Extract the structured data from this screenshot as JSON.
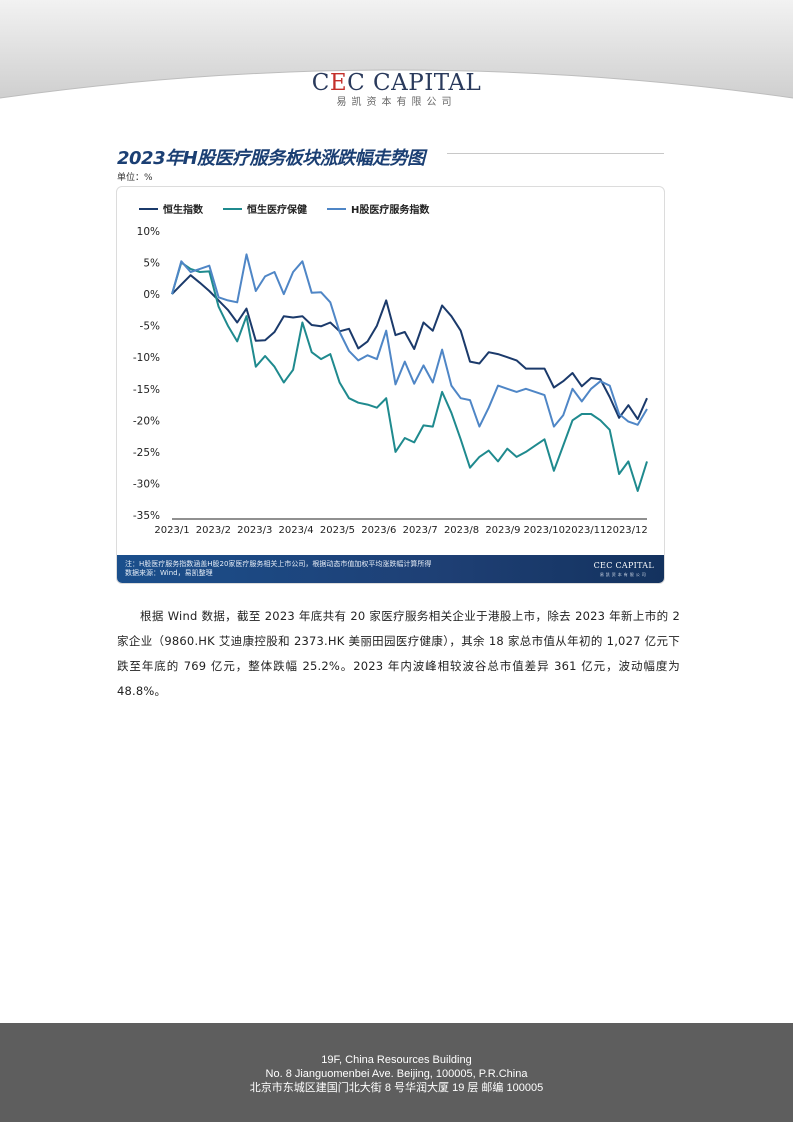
{
  "header": {
    "logo_prefix": "C",
    "logo_e": "E",
    "logo_rest": "C CAPITAL",
    "logo_cn": "易凯资本有限公司"
  },
  "chart_section": {
    "title": "2023年H股医疗服务板块涨跌幅走势图",
    "unit": "单位：%",
    "footnote_line1": "注：H股医疗服务指数涵盖H股20家医疗服务相关上市公司，根据动态市值加权平均涨跌幅计算所得",
    "footnote_line2": "数据来源：Wind，易凯整理",
    "footnote_logo_en": "CEC CAPITAL",
    "footnote_logo_cn": "易凯资本有限公司"
  },
  "chart_data": {
    "type": "line",
    "title": "2023年H股医疗服务板块涨跌幅走势图",
    "ylabel": "单位：%",
    "ylim": [
      -35,
      10
    ],
    "yticks": [
      10,
      5,
      0,
      -5,
      -10,
      -15,
      -20,
      -25,
      -30,
      -35
    ],
    "ytick_labels": [
      "10%",
      "5%",
      "0%",
      "-5%",
      "-10%",
      "-15%",
      "-20%",
      "-25%",
      "-30%",
      "-35%"
    ],
    "x_tick_labels": [
      "2023/1",
      "2023/2",
      "2023/3",
      "2023/4",
      "2023/5",
      "2023/6",
      "2023/7",
      "2023/8",
      "2023/9",
      "2023/10",
      "2023/11",
      "2023/12"
    ],
    "legend_position": "top-left",
    "grid": false,
    "series": [
      {
        "name": "恒生指数",
        "color": "#1b3a6b",
        "values": [
          0,
          1.5,
          3,
          1.8,
          0.5,
          -1,
          -2.5,
          -4.5,
          -2.3,
          -7.4,
          -7.3,
          -6,
          -3.5,
          -3.7,
          -3.5,
          -4.9,
          -5.1,
          -4.5,
          -5.9,
          -5.5,
          -8.6,
          -7.5,
          -5,
          -1,
          -6.5,
          -6,
          -8.7,
          -4.5,
          -5.8,
          -1.8,
          -3.5,
          -5.8,
          -10.7,
          -11,
          -9.2,
          -9.5,
          -10,
          -10.5,
          -11.8,
          -11.8,
          -11.8,
          -14.8,
          -13.8,
          -12.5,
          -14.6,
          -13.3,
          -13.5,
          -16.3,
          -19.6,
          -17.6,
          -19.8,
          -16.5
        ]
      },
      {
        "name": "恒生医疗保健",
        "color": "#1f8a8e",
        "values": [
          0,
          5,
          4,
          3.5,
          3.6,
          -2,
          -5,
          -7.5,
          -3.5,
          -11.5,
          -9.8,
          -11.5,
          -14,
          -12,
          -4.5,
          -9.2,
          -10.3,
          -9.5,
          -14,
          -16.5,
          -17.2,
          -17.5,
          -18,
          -16.5,
          -25,
          -22.8,
          -23.5,
          -20.8,
          -21,
          -15.5,
          -18.8,
          -23,
          -27.5,
          -25.8,
          -24.8,
          -26.5,
          -24.5,
          -25.8,
          -25,
          -24,
          -23,
          -28,
          -24,
          -20,
          -19,
          -19,
          -20,
          -21.5,
          -28.5,
          -26.5,
          -31.2,
          -26.5
        ]
      },
      {
        "name": "H股医疗服务指数",
        "color": "#4f86c6",
        "values": [
          0,
          5.2,
          3.5,
          4,
          4.5,
          -0.5,
          -1,
          -1.3,
          6.3,
          0.5,
          2.8,
          3.5,
          0,
          3.5,
          5.2,
          0.2,
          0.3,
          -1.3,
          -6,
          -9,
          -10.5,
          -9.7,
          -10.3,
          -5.8,
          -14.3,
          -10.7,
          -14.2,
          -11.3,
          -14,
          -8.8,
          -14.5,
          -16.5,
          -16.8,
          -21,
          -18,
          -14.5,
          -15,
          -15.5,
          -15,
          -15.5,
          -16,
          -21,
          -19.2,
          -15,
          -17,
          -15,
          -13.8,
          -14.5,
          -19,
          -20.2,
          -20.7,
          -18.2
        ]
      }
    ]
  },
  "body": {
    "paragraph": "根据 Wind 数据，截至 2023 年底共有 20 家医疗服务相关企业于港股上市，除去 2023 年新上市的 2 家企业（9860.HK 艾迪康控股和 2373.HK 美丽田园医疗健康），其余 18 家总市值从年初的 1,027 亿元下跌至年底的 769 亿元，整体跌幅 25.2%。2023 年内波峰相较波谷总市值差异 361 亿元，波动幅度为 48.8%。"
  },
  "footer": {
    "line1": "19F, China Resources Building",
    "line2": "No. 8 Jianguomenbei Ave. Beijing, 100005, P.R.China",
    "line3": "北京市东城区建国门北大街 8 号华润大厦 19 层  邮编  100005"
  }
}
